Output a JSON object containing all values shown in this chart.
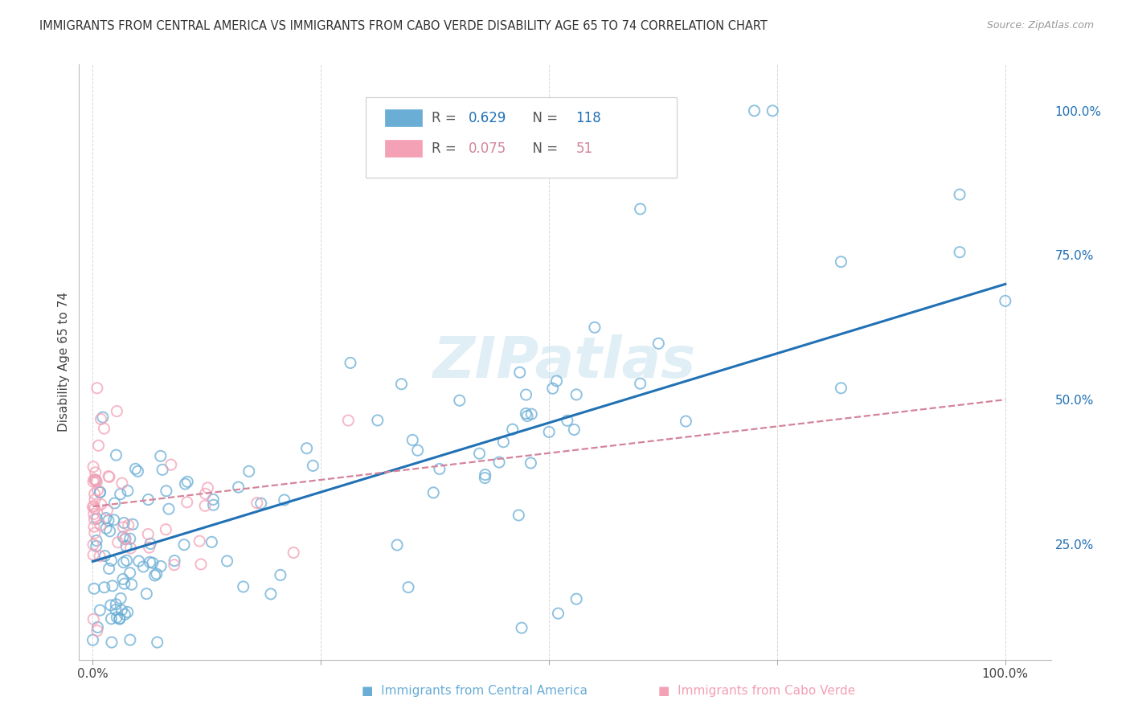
{
  "title": "IMMIGRANTS FROM CENTRAL AMERICA VS IMMIGRANTS FROM CABO VERDE DISABILITY AGE 65 TO 74 CORRELATION CHART",
  "source": "Source: ZipAtlas.com",
  "ylabel": "Disability Age 65 to 74",
  "legend_blue_R": "0.629",
  "legend_blue_N": "118",
  "legend_pink_R": "0.075",
  "legend_pink_N": "51",
  "label_blue": "Immigrants from Central America",
  "label_pink": "Immigrants from Cabo Verde",
  "right_ytick_labels": [
    "100.0%",
    "75.0%",
    "50.0%",
    "25.0%"
  ],
  "right_ytick_vals": [
    1.0,
    0.75,
    0.5,
    0.25
  ],
  "watermark": "ZIPatlas",
  "blue_line_x": [
    0.0,
    1.0
  ],
  "blue_line_y": [
    0.22,
    0.7
  ],
  "pink_line_x": [
    0.0,
    1.0
  ],
  "pink_line_y": [
    0.315,
    0.5
  ],
  "scatter_color_blue": "#6aaed6",
  "scatter_color_pink": "#f4a0b5",
  "line_color_blue": "#2171b5",
  "line_color_pink": "#d4849a",
  "background_color": "#ffffff",
  "grid_color": "#cccccc",
  "xlim": [
    -0.015,
    1.05
  ],
  "ylim": [
    0.05,
    1.08
  ]
}
